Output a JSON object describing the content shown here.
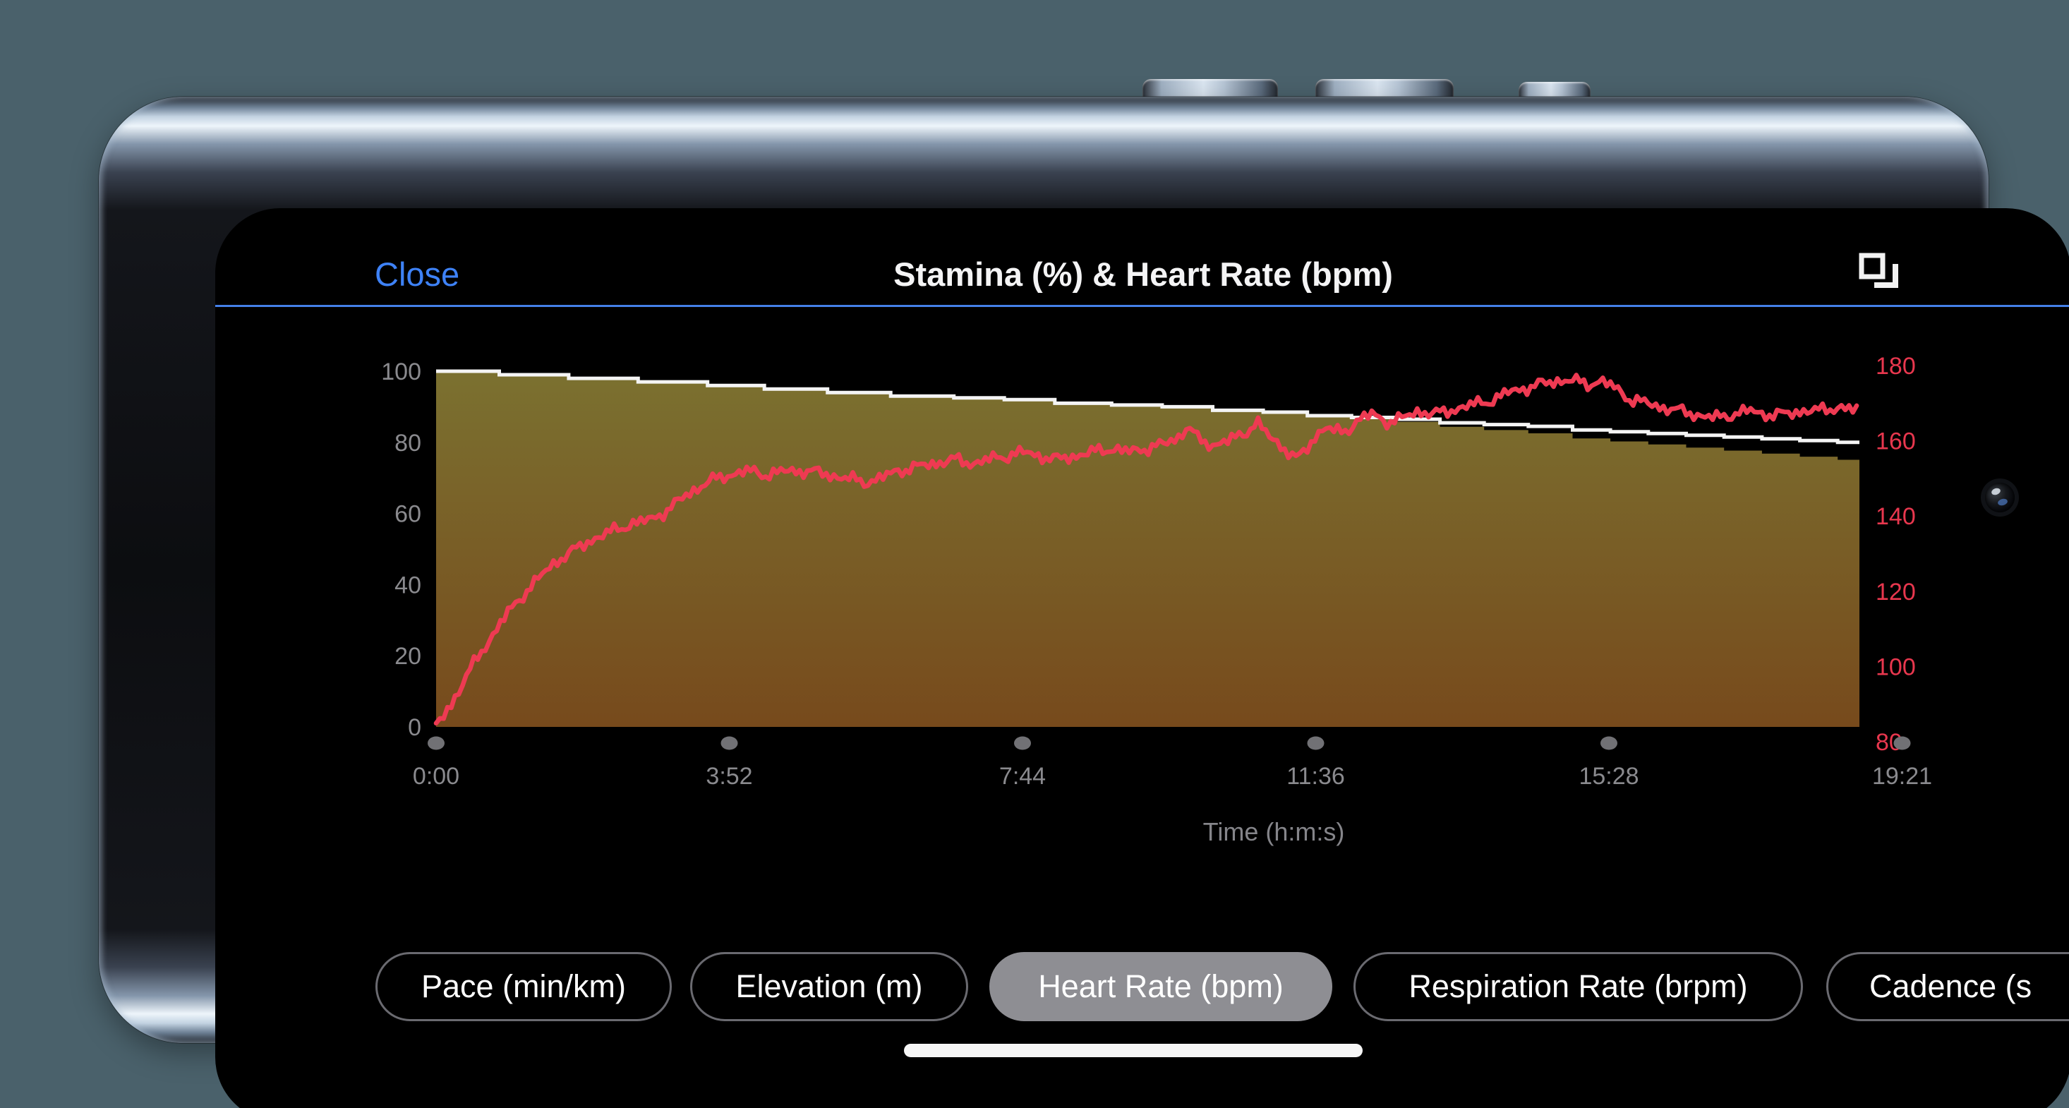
{
  "header": {
    "close_label": "Close",
    "title": "Stamina (%) & Heart Rate (bpm)",
    "action_icon": "overlay-squares-icon"
  },
  "metric_tabs": {
    "items": [
      {
        "label": "Pace (min/km)",
        "selected": false
      },
      {
        "label": "Elevation (m)",
        "selected": false
      },
      {
        "label": "Heart Rate (bpm)",
        "selected": true
      },
      {
        "label": "Respiration Rate (brpm)",
        "selected": false
      },
      {
        "label": "Cadence (s",
        "selected": false
      }
    ]
  },
  "colors": {
    "accent_blue": "#3e82f7",
    "divider_blue": "#4480e8",
    "pill_border": "#6a6a70",
    "pill_selected_bg": "#8e8e93",
    "axis_gray": "#8a8a8e",
    "axis_title_gray": "#85858a",
    "tick_dot_gray": "#717175",
    "stamina_line": "#f4f4f4",
    "heart_rate_red": "#ee3a52",
    "screen_bg": "#000000",
    "stage_bg": "#4a616b"
  },
  "chart_data": {
    "type": "area",
    "title": "Stamina (%) & Heart Rate (bpm)",
    "xlabel": "Time (h:m:s)",
    "grid": false,
    "legend": "none",
    "duration_s": 1161,
    "x_ticks": {
      "labels": [
        "0:00",
        "3:52",
        "7:44",
        "11:36",
        "15:28",
        "19:21"
      ],
      "seconds": [
        0,
        232,
        464,
        696,
        928,
        1161
      ]
    },
    "left_axis": {
      "title": "Stamina (%)",
      "min": 0,
      "max": 100,
      "ticks": [
        100,
        80,
        60,
        40,
        20,
        0
      ],
      "color": "#8a8a8e"
    },
    "right_axis": {
      "title": "Heart Rate (bpm)",
      "min": 80,
      "max": 180,
      "ticks": [
        180,
        160,
        140,
        120,
        100,
        80
      ],
      "color": "#e8374e"
    },
    "series": [
      {
        "name": "Stamina (%)",
        "axis": "left",
        "type": "step-area",
        "line_color": "#f4f4f4",
        "fill_gradient_top": "#7b7130",
        "fill_gradient_bottom": "#774a1c",
        "points": [
          [
            0,
            100
          ],
          [
            50,
            99
          ],
          [
            105,
            98
          ],
          [
            160,
            97
          ],
          [
            215,
            96
          ],
          [
            260,
            95
          ],
          [
            310,
            94
          ],
          [
            360,
            93
          ],
          [
            410,
            92.5
          ],
          [
            450,
            92
          ],
          [
            490,
            91
          ],
          [
            535,
            90.5
          ],
          [
            575,
            90
          ],
          [
            615,
            89
          ],
          [
            655,
            88.5
          ],
          [
            690,
            87.5
          ],
          [
            725,
            87
          ],
          [
            760,
            86.5
          ],
          [
            795,
            85.5
          ],
          [
            830,
            85
          ],
          [
            865,
            84.5
          ],
          [
            900,
            83.5
          ],
          [
            930,
            83
          ],
          [
            960,
            82.5
          ],
          [
            990,
            82
          ],
          [
            1020,
            81.5
          ],
          [
            1050,
            81
          ],
          [
            1080,
            80.5
          ],
          [
            1110,
            80
          ],
          [
            1135,
            79.7
          ],
          [
            1161,
            79.4
          ]
        ]
      },
      {
        "name": "Heart Rate (bpm)",
        "axis": "right",
        "type": "line",
        "color": "#ee3a52",
        "points": [
          [
            0,
            84
          ],
          [
            12,
            90
          ],
          [
            25,
            98
          ],
          [
            38,
            105
          ],
          [
            52,
            112
          ],
          [
            66,
            118
          ],
          [
            80,
            123
          ],
          [
            95,
            128
          ],
          [
            110,
            131
          ],
          [
            125,
            134
          ],
          [
            140,
            136
          ],
          [
            155,
            138
          ],
          [
            170,
            139
          ],
          [
            185,
            142
          ],
          [
            200,
            146
          ],
          [
            215,
            149
          ],
          [
            232,
            151
          ],
          [
            248,
            152
          ],
          [
            262,
            151
          ],
          [
            278,
            152
          ],
          [
            295,
            152
          ],
          [
            310,
            151
          ],
          [
            325,
            150
          ],
          [
            340,
            149
          ],
          [
            352,
            150
          ],
          [
            365,
            152
          ],
          [
            380,
            153
          ],
          [
            395,
            154
          ],
          [
            410,
            155
          ],
          [
            425,
            154
          ],
          [
            438,
            155
          ],
          [
            452,
            156
          ],
          [
            464,
            157
          ],
          [
            478,
            156
          ],
          [
            492,
            155
          ],
          [
            506,
            156
          ],
          [
            520,
            157
          ],
          [
            535,
            158
          ],
          [
            548,
            157
          ],
          [
            562,
            158
          ],
          [
            576,
            159
          ],
          [
            588,
            161
          ],
          [
            596,
            164
          ],
          [
            604,
            160
          ],
          [
            615,
            159
          ],
          [
            628,
            160
          ],
          [
            640,
            162
          ],
          [
            650,
            165
          ],
          [
            660,
            161
          ],
          [
            672,
            158
          ],
          [
            682,
            155
          ],
          [
            690,
            158
          ],
          [
            696,
            161
          ],
          [
            704,
            164
          ],
          [
            712,
            162
          ],
          [
            722,
            163
          ],
          [
            732,
            166
          ],
          [
            742,
            167
          ],
          [
            754,
            165
          ],
          [
            766,
            166
          ],
          [
            778,
            168
          ],
          [
            790,
            167
          ],
          [
            802,
            168
          ],
          [
            814,
            169
          ],
          [
            826,
            170
          ],
          [
            838,
            171
          ],
          [
            850,
            173
          ],
          [
            862,
            174
          ],
          [
            875,
            175
          ],
          [
            888,
            176
          ],
          [
            900,
            176
          ],
          [
            912,
            175
          ],
          [
            922,
            176
          ],
          [
            934,
            174
          ],
          [
            946,
            171
          ],
          [
            958,
            170
          ],
          [
            970,
            169
          ],
          [
            984,
            168
          ],
          [
            998,
            167
          ],
          [
            1012,
            166
          ],
          [
            1026,
            167
          ],
          [
            1040,
            168
          ],
          [
            1054,
            167
          ],
          [
            1068,
            167
          ],
          [
            1082,
            168
          ],
          [
            1096,
            168
          ],
          [
            1110,
            169
          ],
          [
            1124,
            168
          ],
          [
            1140,
            169
          ],
          [
            1155,
            169
          ],
          [
            1161,
            169
          ]
        ]
      }
    ]
  }
}
